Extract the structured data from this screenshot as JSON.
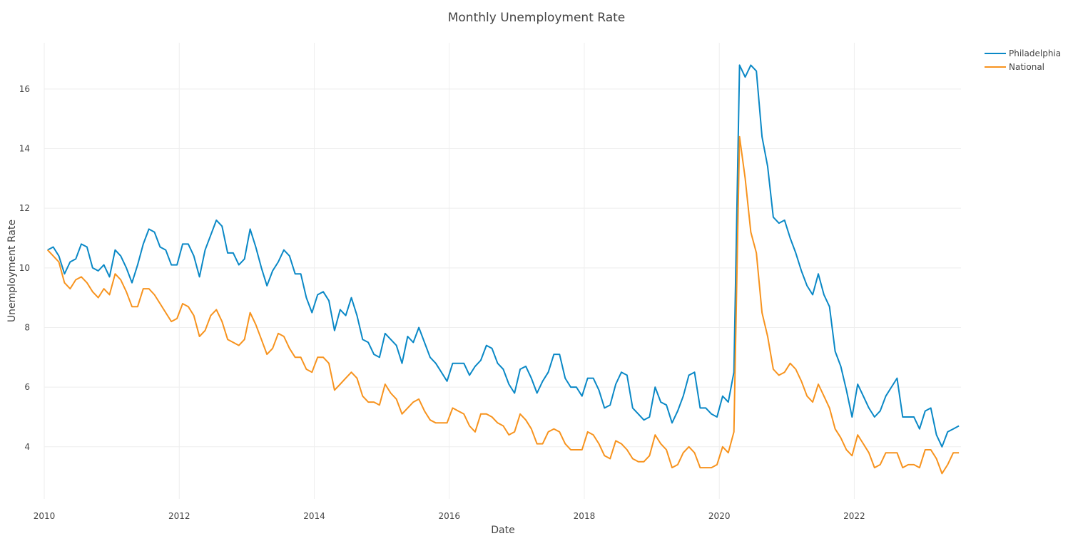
{
  "chart_data": {
    "type": "line",
    "title": "Monthly Unemployment Rate",
    "xlabel": "Date",
    "ylabel": "Unemployment Rate",
    "x_start": "2010-01",
    "x_end": "2023-07",
    "x_frequency": "monthly",
    "x_ticks": [
      "2010",
      "2012",
      "2014",
      "2016",
      "2018",
      "2020",
      "2022"
    ],
    "y_ticks": [
      4,
      6,
      8,
      10,
      12,
      14,
      16
    ],
    "ylim": [
      2.25,
      17.55
    ],
    "grid": true,
    "legend_position": "top-right",
    "series": [
      {
        "name": "Philadelphia",
        "color": "#0a88c6",
        "values": [
          10.6,
          10.7,
          10.4,
          9.8,
          10.2,
          10.3,
          10.8,
          10.7,
          10.0,
          9.9,
          10.1,
          9.7,
          10.6,
          10.4,
          10.0,
          9.5,
          10.1,
          10.8,
          11.3,
          11.2,
          10.7,
          10.6,
          10.1,
          10.1,
          10.8,
          10.8,
          10.4,
          9.7,
          10.6,
          11.1,
          11.6,
          11.4,
          10.5,
          10.5,
          10.1,
          10.3,
          11.3,
          10.7,
          10.0,
          9.4,
          9.9,
          10.2,
          10.6,
          10.4,
          9.8,
          9.8,
          9.0,
          8.5,
          9.1,
          9.2,
          8.9,
          7.9,
          8.6,
          8.4,
          9.0,
          8.4,
          7.6,
          7.5,
          7.1,
          7.0,
          7.8,
          7.6,
          7.4,
          6.8,
          7.7,
          7.5,
          8.0,
          7.5,
          7.0,
          6.8,
          6.5,
          6.2,
          6.8,
          6.8,
          6.8,
          6.4,
          6.7,
          6.9,
          7.4,
          7.3,
          6.8,
          6.6,
          6.1,
          5.8,
          6.6,
          6.7,
          6.3,
          5.8,
          6.2,
          6.5,
          7.1,
          7.1,
          6.3,
          6.0,
          6.0,
          5.7,
          6.3,
          6.3,
          5.9,
          5.3,
          5.4,
          6.1,
          6.5,
          6.4,
          5.3,
          5.1,
          4.9,
          5.0,
          6.0,
          5.5,
          5.4,
          4.8,
          5.2,
          5.7,
          6.4,
          6.5,
          5.3,
          5.3,
          5.1,
          5.0,
          5.7,
          5.5,
          6.5,
          16.8,
          16.4,
          16.8,
          16.6,
          14.4,
          13.4,
          11.7,
          11.5,
          11.6,
          11.0,
          10.5,
          9.9,
          9.4,
          9.1,
          9.8,
          9.1,
          8.7,
          7.2,
          6.7,
          5.9,
          5.0,
          6.1,
          5.7,
          5.3,
          5.0,
          5.2,
          5.7,
          6.0,
          6.3,
          5.0,
          5.0,
          5.0,
          4.6,
          5.2,
          5.3,
          4.4,
          4.0,
          4.5,
          4.6,
          4.7
        ]
      },
      {
        "name": "National",
        "color": "#f7931e",
        "values": [
          10.6,
          10.4,
          10.2,
          9.5,
          9.3,
          9.6,
          9.7,
          9.5,
          9.2,
          9.0,
          9.3,
          9.1,
          9.8,
          9.6,
          9.2,
          8.7,
          8.7,
          9.3,
          9.3,
          9.1,
          8.8,
          8.5,
          8.2,
          8.3,
          8.8,
          8.7,
          8.4,
          7.7,
          7.9,
          8.4,
          8.6,
          8.2,
          7.6,
          7.5,
          7.4,
          7.6,
          8.5,
          8.1,
          7.6,
          7.1,
          7.3,
          7.8,
          7.7,
          7.3,
          7.0,
          7.0,
          6.6,
          6.5,
          7.0,
          7.0,
          6.8,
          5.9,
          6.1,
          6.3,
          6.5,
          6.3,
          5.7,
          5.5,
          5.5,
          5.4,
          6.1,
          5.8,
          5.6,
          5.1,
          5.3,
          5.5,
          5.6,
          5.2,
          4.9,
          4.8,
          4.8,
          4.8,
          5.3,
          5.2,
          5.1,
          4.7,
          4.5,
          5.1,
          5.1,
          5.0,
          4.8,
          4.7,
          4.4,
          4.5,
          5.1,
          4.9,
          4.6,
          4.1,
          4.1,
          4.5,
          4.6,
          4.5,
          4.1,
          3.9,
          3.9,
          3.9,
          4.5,
          4.4,
          4.1,
          3.7,
          3.6,
          4.2,
          4.1,
          3.9,
          3.6,
          3.5,
          3.5,
          3.7,
          4.4,
          4.1,
          3.9,
          3.3,
          3.4,
          3.8,
          4.0,
          3.8,
          3.3,
          3.3,
          3.3,
          3.4,
          4.0,
          3.8,
          4.5,
          14.4,
          13.0,
          11.2,
          10.5,
          8.5,
          7.7,
          6.6,
          6.4,
          6.5,
          6.8,
          6.6,
          6.2,
          5.7,
          5.5,
          6.1,
          5.7,
          5.3,
          4.6,
          4.3,
          3.9,
          3.7,
          4.4,
          4.1,
          3.8,
          3.3,
          3.4,
          3.8,
          3.8,
          3.8,
          3.3,
          3.4,
          3.4,
          3.3,
          3.9,
          3.9,
          3.6,
          3.1,
          3.4,
          3.8,
          3.8
        ]
      }
    ]
  }
}
